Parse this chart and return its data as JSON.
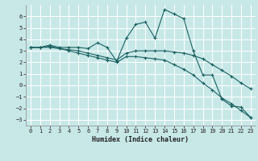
{
  "xlabel": "Humidex (Indice chaleur)",
  "background_color": "#c8e8e8",
  "grid_color": "#ffffff",
  "line_color": "#1a6060",
  "xlim": [
    -0.5,
    23.5
  ],
  "ylim": [
    -3.5,
    7.0
  ],
  "yticks": [
    -3,
    -2,
    -1,
    0,
    1,
    2,
    3,
    4,
    5,
    6
  ],
  "xticks": [
    0,
    1,
    2,
    3,
    4,
    5,
    6,
    7,
    8,
    9,
    10,
    11,
    12,
    13,
    14,
    15,
    16,
    17,
    18,
    19,
    20,
    21,
    22,
    23
  ],
  "line1_x": [
    0,
    1,
    2,
    3,
    4,
    5,
    6,
    7,
    8,
    9,
    10,
    11,
    12,
    13,
    14,
    15,
    16,
    17,
    18,
    19,
    20,
    21,
    22,
    23
  ],
  "line1_y": [
    3.3,
    3.3,
    3.5,
    3.3,
    3.3,
    3.3,
    3.2,
    3.7,
    3.3,
    2.1,
    4.1,
    5.3,
    5.5,
    4.1,
    6.6,
    6.2,
    5.8,
    3.0,
    0.9,
    0.9,
    -1.2,
    -1.8,
    -1.9,
    -2.8
  ],
  "line2_x": [
    0,
    1,
    2,
    3,
    4,
    5,
    6,
    7,
    8,
    9,
    10,
    11,
    12,
    13,
    14,
    15,
    16,
    17,
    18,
    19,
    20,
    21,
    22,
    23
  ],
  "line2_y": [
    3.3,
    3.3,
    3.4,
    3.2,
    3.1,
    3.0,
    2.8,
    2.6,
    2.4,
    2.2,
    2.8,
    3.0,
    3.0,
    3.0,
    3.0,
    2.9,
    2.8,
    2.6,
    2.3,
    1.8,
    1.3,
    0.8,
    0.2,
    -0.3
  ],
  "line3_x": [
    0,
    1,
    2,
    3,
    4,
    5,
    6,
    7,
    8,
    9,
    10,
    11,
    12,
    13,
    14,
    15,
    16,
    17,
    18,
    19,
    20,
    21,
    22,
    23
  ],
  "line3_y": [
    3.3,
    3.3,
    3.3,
    3.2,
    3.0,
    2.8,
    2.6,
    2.4,
    2.2,
    2.0,
    2.5,
    2.5,
    2.4,
    2.3,
    2.2,
    1.8,
    1.4,
    0.9,
    0.2,
    -0.4,
    -1.1,
    -1.6,
    -2.2,
    -2.8
  ],
  "tick_fontsize": 5.0,
  "xlabel_fontsize": 6.0
}
